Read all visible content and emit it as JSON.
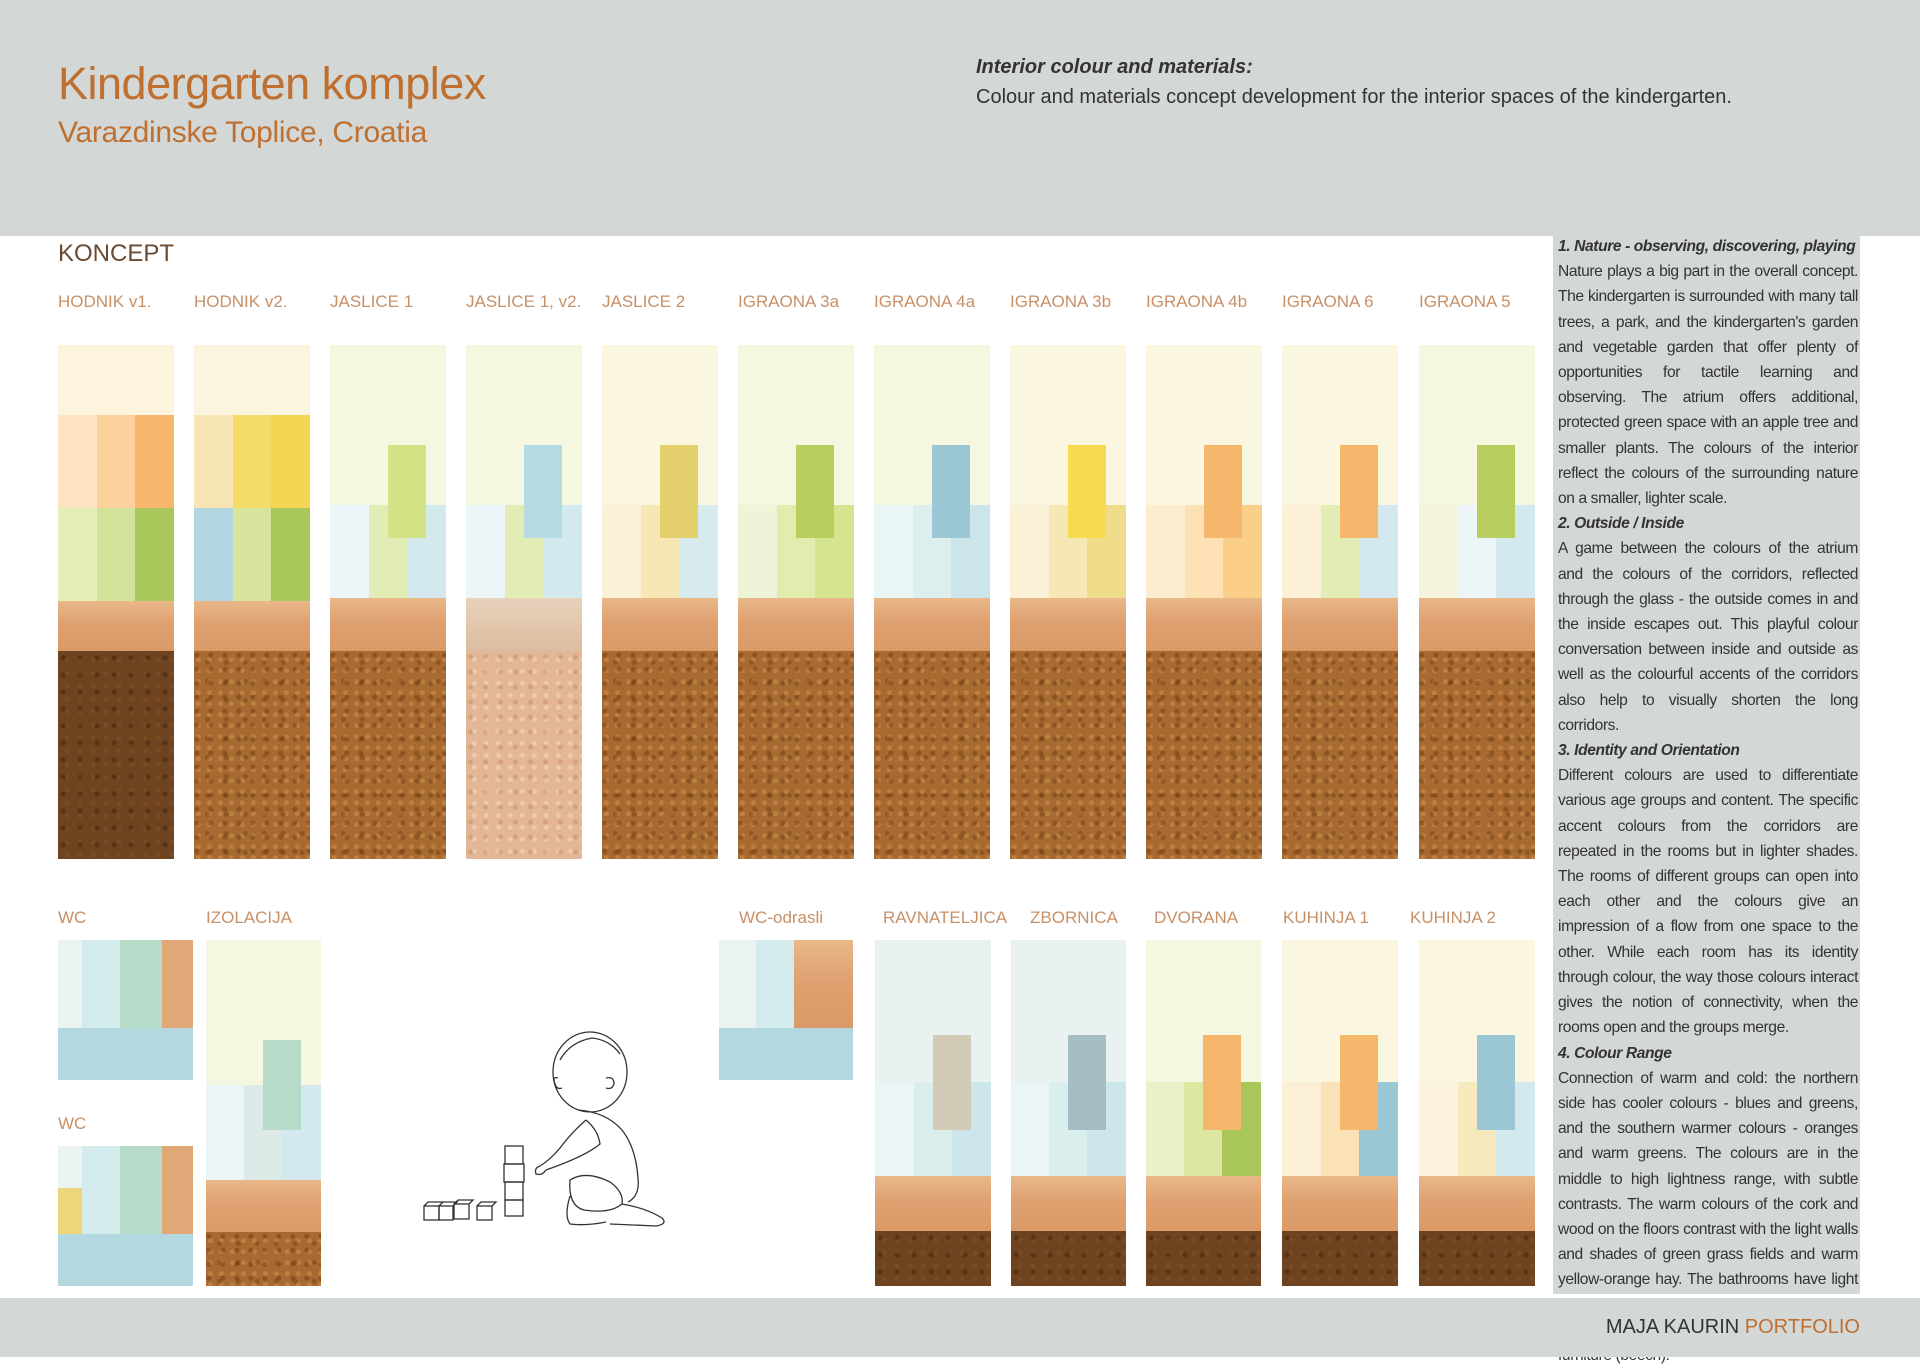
{
  "header": {
    "title": "Kindergarten komplex",
    "subtitle": "Varazdinske Toplice, Croatia",
    "intro_heading": "Interior colour and materials:",
    "intro_text": "Colour and materials concept development for the interior spaces of the kindergarten."
  },
  "section_title": "KONCEPT",
  "rooms_top": [
    "HODNIK v1.",
    "HODNIK v2.",
    "JASLICE 1",
    "JASLICE 1, v2.",
    "JASLICE 2",
    "IGRAONA 3a",
    "IGRAONA 4a",
    "IGRAONA 3b",
    "IGRAONA 4b",
    "IGRAONA 6",
    "IGRAONA 5"
  ],
  "rooms_bottom": [
    "WC",
    "IZOLACIJA",
    "WC",
    "WC-odrasli",
    "RAVNATELJICA",
    "ZBORNICA",
    "DVORANA",
    "KUHINJA 1",
    "KUHINJA 2"
  ],
  "sidebar": {
    "s1_heading": "1. Nature - observing, discovering, playing",
    "s1_text": "Nature plays a big part in the overall concept. The kindergarten is surrounded with many tall trees, a park, and the kindergarten's garden and vegetable garden that offer plenty of opportunities for tactile learning and observing. The atrium offers additional, protected green space with an apple tree and smaller plants. The colours of the interior reflect the colours of the surrounding nature on a smaller, lighter scale.",
    "s2_heading": "2. Outside / Inside",
    "s2_text": "A game between the colours of the atrium and the colours of the corridors, reflected through the glass - the outside comes in and the inside escapes out. This playful colour conversation between inside and outside as well as the colourful accents of the corridors also help to visually shorten the long corridors.",
    "s3_heading": "3. Identity and Orientation",
    "s3_text": "Different colours are used to differentiate various age groups and content. The specific accent colours from the corridors are repeated in the rooms but in lighter shades. The rooms of different groups can open into each other and the colours give an impression of a flow from one space to the other. While each room has its identity through colour, the way those colours interact gives the notion of connectivity, when the rooms open and the groups merge.",
    "s4_heading": "4. Colour Range",
    "s4_text": "Connection of warm and cold: the northern side has cooler colours - blues and greens, and the southern warmer colours - oranges and warm greens. The colours are in the middle to high lightness range, with subtle contrasts. The warm colours of the cork and wood on the floors contrast with the light walls and shades of green grass fields and warm yellow-orange hay. The bathrooms have light ranges of green, blue, orange or warm yellow accents (v. age groups) with light wood furniture (beech)."
  },
  "footer": {
    "author": "MAJA KAURIN",
    "portfolio": "PORTFOLIO"
  },
  "colors": {
    "brand": "#bf6f30",
    "header_bg": "#d3d7d6",
    "label": "#c79067"
  }
}
